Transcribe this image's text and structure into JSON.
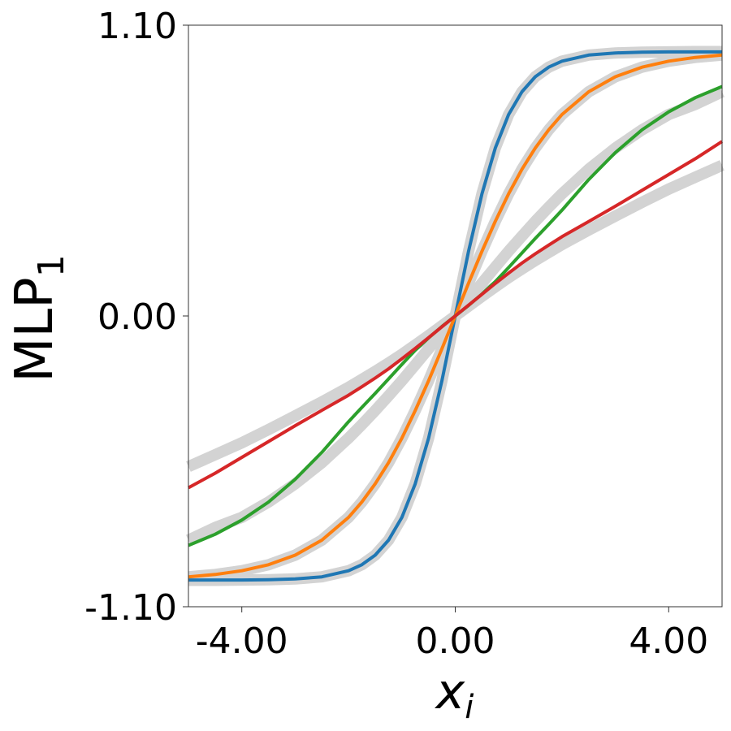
{
  "chart_data": {
    "type": "line",
    "xlabel_main": "x",
    "xlabel_sub": "i",
    "ylabel_main": "MLP",
    "ylabel_sub": "1",
    "xlim": [
      -5.0,
      5.0
    ],
    "ylim": [
      -1.1,
      1.1
    ],
    "x_ticks": [
      -4.0,
      0.0,
      4.0
    ],
    "x_tick_labels": [
      "-4.00",
      "0.00",
      "4.00"
    ],
    "y_ticks": [
      -1.1,
      0.0,
      1.1
    ],
    "y_tick_labels": [
      "-1.10",
      "0.00",
      "1.10"
    ],
    "grid": false,
    "series": [
      {
        "color": "#1f77b4",
        "reference_color": "#d3d3d3",
        "x": [
          -5.0,
          -4.5,
          -4.0,
          -3.5,
          -3.0,
          -2.5,
          -2.0,
          -1.75,
          -1.5,
          -1.25,
          -1.0,
          -0.75,
          -0.5,
          -0.25,
          0.0,
          0.25,
          0.5,
          0.75,
          1.0,
          1.25,
          1.5,
          1.75,
          2.0,
          2.5,
          3.0,
          3.5,
          4.0,
          4.5,
          5.0
        ],
        "values": [
          -0.999,
          -0.999,
          -0.999,
          -0.998,
          -0.995,
          -0.987,
          -0.964,
          -0.941,
          -0.905,
          -0.848,
          -0.762,
          -0.635,
          -0.462,
          -0.245,
          0.0,
          0.245,
          0.462,
          0.635,
          0.762,
          0.848,
          0.905,
          0.941,
          0.964,
          0.987,
          0.995,
          0.998,
          0.999,
          0.999,
          0.999
        ],
        "reference": [
          -1.0,
          -1.0,
          -0.999,
          -0.998,
          -0.995,
          -0.987,
          -0.964,
          -0.941,
          -0.905,
          -0.848,
          -0.762,
          -0.635,
          -0.462,
          -0.245,
          0.0,
          0.245,
          0.462,
          0.635,
          0.762,
          0.848,
          0.905,
          0.941,
          0.964,
          0.987,
          0.995,
          0.998,
          0.999,
          1.0,
          1.0
        ]
      },
      {
        "color": "#ff7f0e",
        "reference_color": "#d3d3d3",
        "x": [
          -5.0,
          -4.5,
          -4.0,
          -3.5,
          -3.0,
          -2.5,
          -2.0,
          -1.75,
          -1.5,
          -1.25,
          -1.0,
          -0.75,
          -0.5,
          -0.25,
          0.0,
          0.25,
          0.5,
          0.75,
          1.0,
          1.25,
          1.5,
          1.75,
          2.0,
          2.5,
          3.0,
          3.5,
          4.0,
          4.5,
          5.0
        ],
        "values": [
          -0.987,
          -0.978,
          -0.964,
          -0.941,
          -0.905,
          -0.848,
          -0.762,
          -0.704,
          -0.635,
          -0.555,
          -0.462,
          -0.358,
          -0.245,
          -0.124,
          0.0,
          0.124,
          0.245,
          0.358,
          0.462,
          0.555,
          0.635,
          0.704,
          0.762,
          0.848,
          0.905,
          0.941,
          0.964,
          0.978,
          0.987
        ],
        "reference": [
          -0.987,
          -0.978,
          -0.964,
          -0.941,
          -0.905,
          -0.848,
          -0.762,
          -0.704,
          -0.635,
          -0.555,
          -0.462,
          -0.358,
          -0.245,
          -0.124,
          0.0,
          0.124,
          0.245,
          0.358,
          0.462,
          0.555,
          0.635,
          0.704,
          0.762,
          0.848,
          0.905,
          0.941,
          0.964,
          0.978,
          0.987
        ]
      },
      {
        "color": "#2ca02c",
        "reference_color": "#d3d3d3",
        "x": [
          -5.0,
          -4.5,
          -4.0,
          -3.5,
          -3.0,
          -2.5,
          -2.0,
          -1.75,
          -1.5,
          -1.25,
          -1.0,
          -0.75,
          -0.5,
          -0.25,
          0.0,
          0.25,
          0.5,
          0.75,
          1.0,
          1.25,
          1.5,
          1.75,
          2.0,
          2.5,
          3.0,
          3.5,
          4.0,
          4.5,
          5.0
        ],
        "values": [
          -0.868,
          -0.826,
          -0.772,
          -0.704,
          -0.618,
          -0.516,
          -0.4,
          -0.346,
          -0.293,
          -0.238,
          -0.183,
          -0.13,
          -0.083,
          -0.04,
          0.0,
          0.04,
          0.083,
          0.13,
          0.183,
          0.238,
          0.293,
          0.346,
          0.4,
          0.516,
          0.618,
          0.704,
          0.772,
          0.826,
          0.868
        ],
        "reference": [
          -0.848,
          -0.8,
          -0.762,
          -0.704,
          -0.635,
          -0.555,
          -0.462,
          -0.411,
          -0.358,
          -0.302,
          -0.245,
          -0.185,
          -0.124,
          -0.062,
          0.0,
          0.062,
          0.124,
          0.185,
          0.245,
          0.302,
          0.358,
          0.411,
          0.462,
          0.555,
          0.635,
          0.704,
          0.762,
          0.8,
          0.848
        ]
      },
      {
        "color": "#d62728",
        "reference_color": "#d3d3d3",
        "x": [
          -5.0,
          -4.5,
          -4.0,
          -3.5,
          -3.0,
          -2.5,
          -2.0,
          -1.75,
          -1.5,
          -1.25,
          -1.0,
          -0.75,
          -0.5,
          -0.25,
          0.0,
          0.25,
          0.5,
          0.75,
          1.0,
          1.25,
          1.5,
          1.75,
          2.0,
          2.5,
          3.0,
          3.5,
          4.0,
          4.5,
          5.0
        ],
        "values": [
          -0.65,
          -0.595,
          -0.535,
          -0.475,
          -0.415,
          -0.357,
          -0.3,
          -0.268,
          -0.235,
          -0.2,
          -0.162,
          -0.123,
          -0.082,
          -0.041,
          0.0,
          0.041,
          0.082,
          0.123,
          0.162,
          0.2,
          0.235,
          0.268,
          0.3,
          0.357,
          0.415,
          0.475,
          0.535,
          0.595,
          0.66
        ],
        "reference": [
          -0.57,
          -0.525,
          -0.48,
          -0.43,
          -0.378,
          -0.325,
          -0.27,
          -0.24,
          -0.21,
          -0.178,
          -0.145,
          -0.11,
          -0.074,
          -0.037,
          0.0,
          0.037,
          0.074,
          0.11,
          0.145,
          0.178,
          0.21,
          0.24,
          0.27,
          0.325,
          0.378,
          0.43,
          0.48,
          0.525,
          0.57
        ]
      }
    ]
  }
}
